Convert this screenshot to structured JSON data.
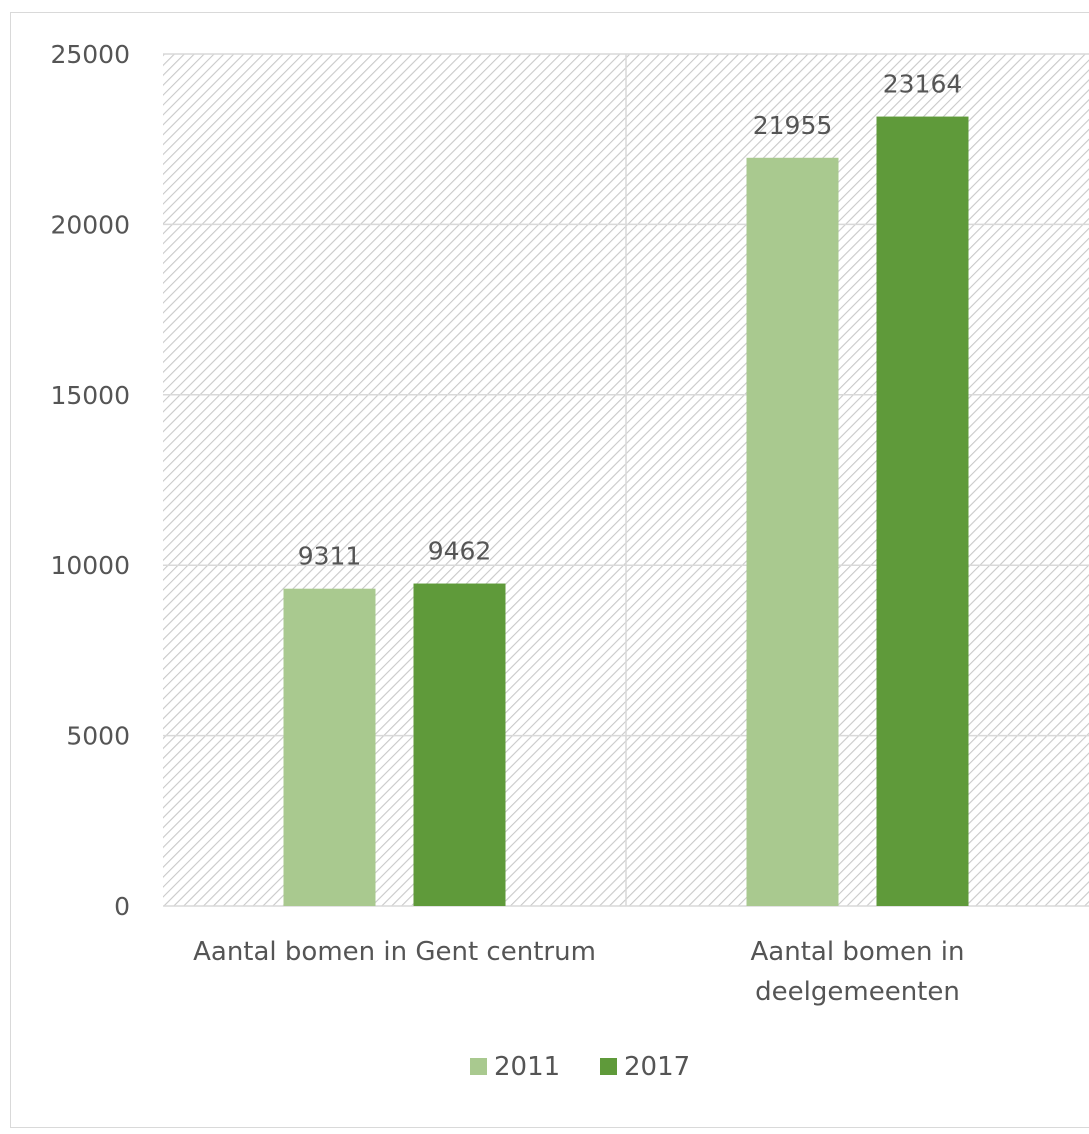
{
  "chart_data": {
    "type": "bar",
    "categories": [
      [
        "Aantal bomen in Gent centrum"
      ],
      [
        "Aantal bomen in",
        "deelgemeenten"
      ]
    ],
    "series": [
      {
        "name": "2011",
        "color": "#a9c98f",
        "values": [
          9311,
          21955
        ]
      },
      {
        "name": "2017",
        "color": "#5f9a3a",
        "values": [
          9462,
          23164
        ]
      }
    ],
    "ylim": [
      0,
      25000
    ],
    "yticks": [
      0,
      5000,
      10000,
      15000,
      20000,
      25000
    ],
    "data_labels": true,
    "grid": true,
    "legend": "bottom",
    "plot_background": "hatched"
  }
}
